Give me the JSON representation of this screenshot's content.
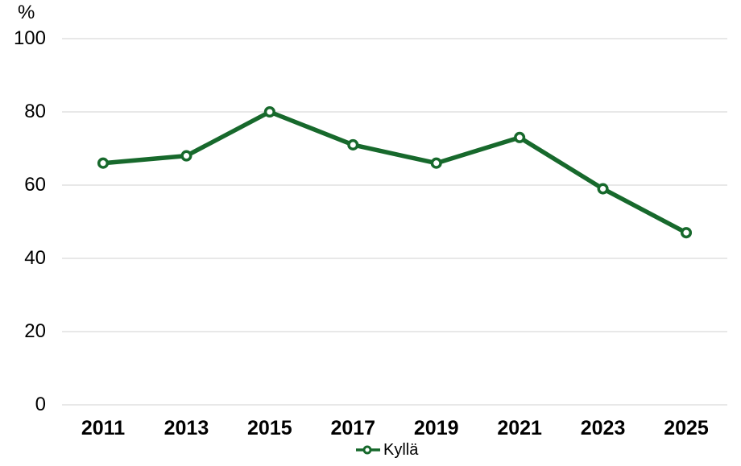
{
  "chart_data": {
    "type": "line",
    "title": "",
    "ylabel": "%",
    "xlabel": "",
    "categories": [
      "2011",
      "2013",
      "2015",
      "2017",
      "2019",
      "2021",
      "2023",
      "2025"
    ],
    "series": [
      {
        "name": "Kyllä",
        "values": [
          66,
          68,
          80,
          71,
          66,
          73,
          59,
          47
        ],
        "color": "#17692c",
        "marker": "open-circle",
        "marker_fill": "#ffffff"
      }
    ],
    "ylim": [
      0,
      100
    ],
    "yticks": [
      0,
      20,
      40,
      60,
      80,
      100
    ],
    "grid": "horizontal-only",
    "gridline_color": "#d9d9d9",
    "text_color": "#000000",
    "legend_position": "bottom-center",
    "legend_entries": [
      "Kyllä"
    ]
  }
}
